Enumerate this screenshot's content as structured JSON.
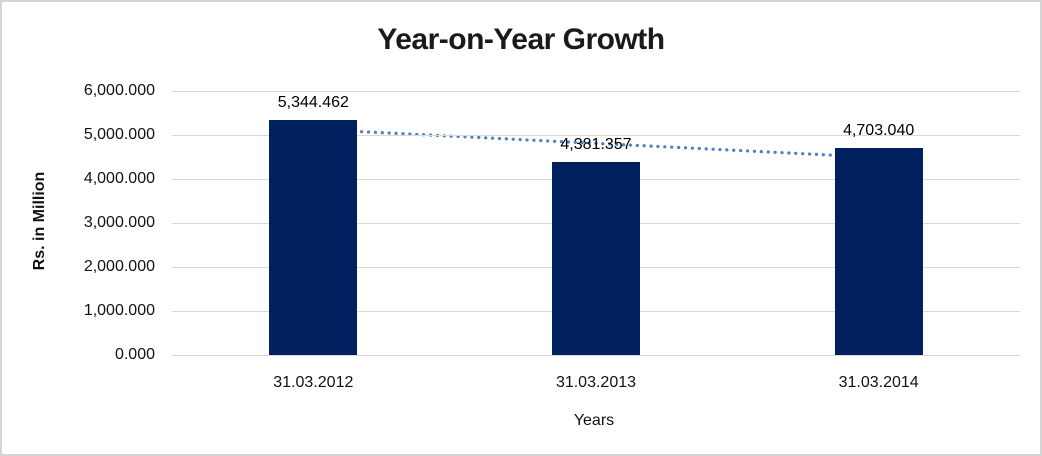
{
  "chart_data": {
    "type": "bar",
    "title": "Year-on-Year Growth",
    "xlabel": "Years",
    "ylabel": "Rs. in Million",
    "categories": [
      "31.03.2012",
      "31.03.2013",
      "31.03.2014"
    ],
    "values": [
      5344.462,
      4381.357,
      4703.04
    ],
    "data_labels": [
      "5,344.462",
      "4,381.357",
      "4,703.040"
    ],
    "y_ticks": [
      "0.000",
      "1,000.000",
      "2,000.000",
      "3,000.000",
      "4,000.000",
      "5,000.000",
      "6,000.000"
    ],
    "ylim": [
      0,
      6000
    ],
    "grid": true,
    "legend": "none",
    "bar_color": "#002060",
    "trendline": {
      "type": "linear",
      "style": "dotted",
      "color": "#4f81bd"
    }
  }
}
